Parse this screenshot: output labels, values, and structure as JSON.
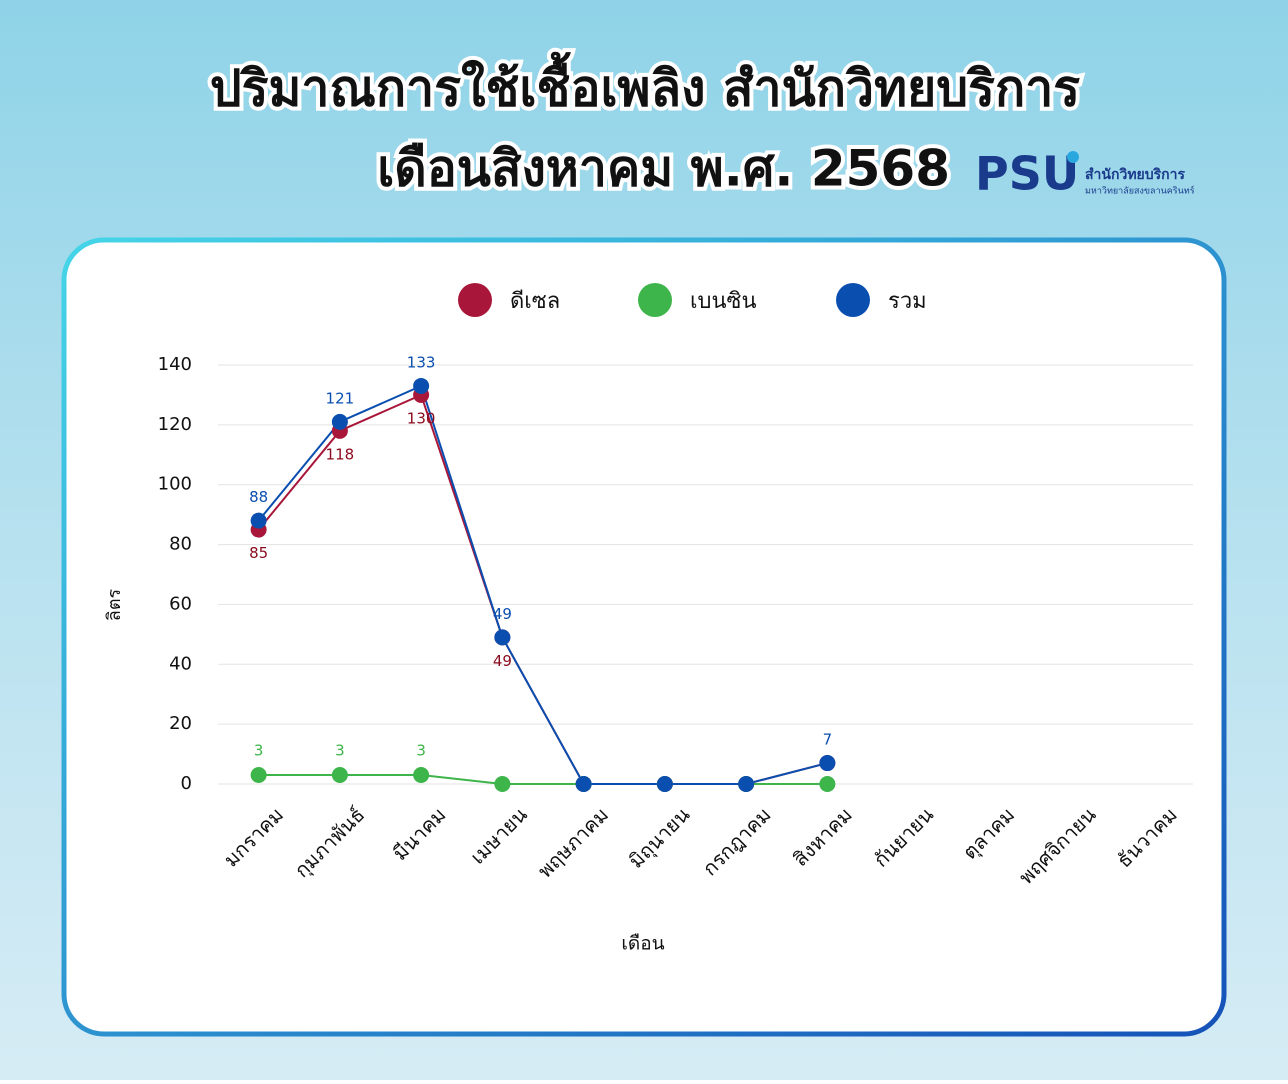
{
  "chart_data": {
    "type": "line",
    "title": "ปริมาณการใช้เชื้อเพลิง สำนักวิทยบริการ",
    "subtitle": "เดือนสิงหาคม พ.ศ. 2568",
    "x_label": "เดือน",
    "y_label": "ลิตร",
    "categories": [
      "มกราคม",
      "กุมภาพันธ์",
      "มีนาคม",
      "เมษายน",
      "พฤษภาคม",
      "มิถุนายน",
      "กรกฎาคม",
      "สิงหาคม",
      "กันยายน",
      "ตุลาคม",
      "พฤศจิกายน",
      "ธันวาคม"
    ],
    "series": [
      {
        "name": "ดีเซล",
        "color": "#a8173a",
        "values": [
          85,
          118,
          130,
          49,
          0,
          0,
          0,
          7,
          null,
          null,
          null,
          null
        ]
      },
      {
        "name": "เบนซิน",
        "color": "#3db54a",
        "values": [
          3,
          3,
          3,
          0,
          0,
          0,
          0,
          0,
          null,
          null,
          null,
          null
        ]
      },
      {
        "name": "รวม",
        "color": "#0a4fb0",
        "values": [
          88,
          121,
          133,
          49,
          0,
          0,
          0,
          7,
          null,
          null,
          null,
          null
        ]
      }
    ],
    "ylim": [
      0,
      140
    ],
    "yticks": [
      0,
      20,
      40,
      60,
      80,
      100,
      120,
      140
    ],
    "grid": true
  },
  "logo": {
    "mark": "PSU",
    "name": "สำนักวิทยบริการ",
    "university": "มหาวิทยาลัยสงขลานครินทร์"
  }
}
